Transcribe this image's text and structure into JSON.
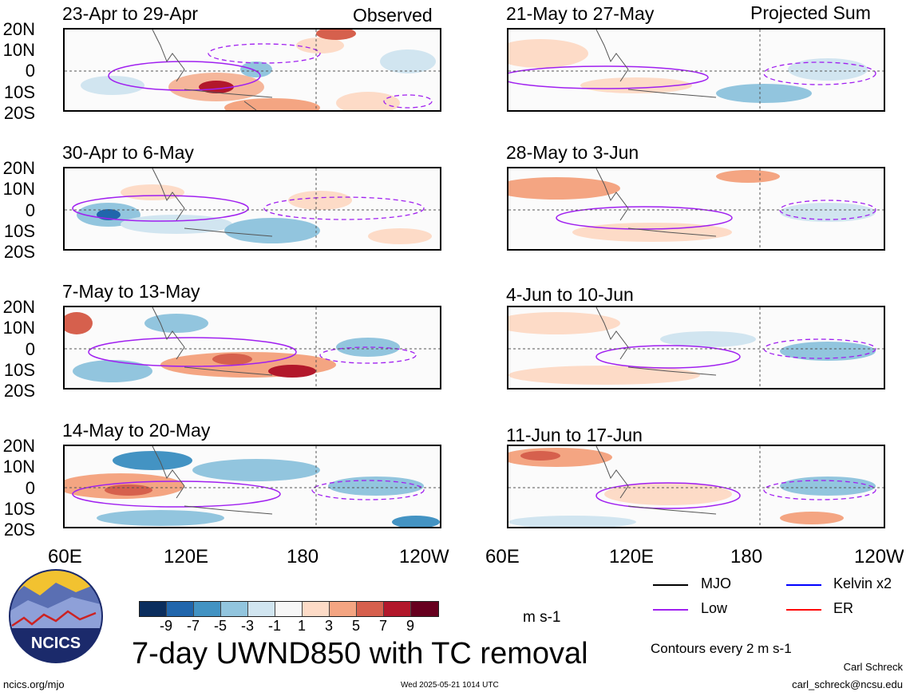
{
  "top_labels": {
    "observed": "Observed",
    "projected": "Projected Sum"
  },
  "panels": [
    {
      "id": "p1",
      "title": "23-Apr to 29-Apr"
    },
    {
      "id": "p2",
      "title": "30-Apr to 6-May"
    },
    {
      "id": "p3",
      "title": "7-May to 13-May"
    },
    {
      "id": "p4",
      "title": "14-May to 20-May"
    },
    {
      "id": "p5",
      "title": "21-May to 27-May"
    },
    {
      "id": "p6",
      "title": "28-May to 3-Jun"
    },
    {
      "id": "p7",
      "title": "4-Jun to 10-Jun"
    },
    {
      "id": "p8",
      "title": "11-Jun to 17-Jun"
    }
  ],
  "lat_labels": [
    "20N",
    "10N",
    "0",
    "10S",
    "20S"
  ],
  "lon_labels": [
    "60E",
    "120E",
    "180",
    "120W"
  ],
  "lon_labels_right": [
    "60E",
    "120E",
    "180",
    "120W"
  ],
  "colorbar": {
    "colors": [
      "#0b2e5e",
      "#2166ac",
      "#4393c3",
      "#92c5de",
      "#d1e5f0",
      "#f7f7f7",
      "#fddbc7",
      "#f4a582",
      "#d6604d",
      "#b2182b",
      "#67001f"
    ],
    "labels": [
      "-9",
      "-7",
      "-5",
      "-3",
      "-1",
      "1",
      "3",
      "5",
      "7",
      "9"
    ],
    "units": "m s-1"
  },
  "main_title": "7-day UWND850 with TC removal",
  "legend": {
    "mjo": {
      "label": "MJO",
      "color": "#000000"
    },
    "low": {
      "label": "Low",
      "color": "#a020f0"
    },
    "kelvin": {
      "label": "Kelvin x2",
      "color": "#0000ff"
    },
    "er": {
      "label": "ER",
      "color": "#ff0000"
    },
    "contours_note": "Contours every 2 m s-1"
  },
  "logo": {
    "text": "NCICS"
  },
  "footer": {
    "url": "ncics.org/mjo",
    "timestamp": "Wed 2025-05-21 1014 UTC",
    "author": "Carl Schreck",
    "email": "carl_schreck@ncsu.edu"
  }
}
